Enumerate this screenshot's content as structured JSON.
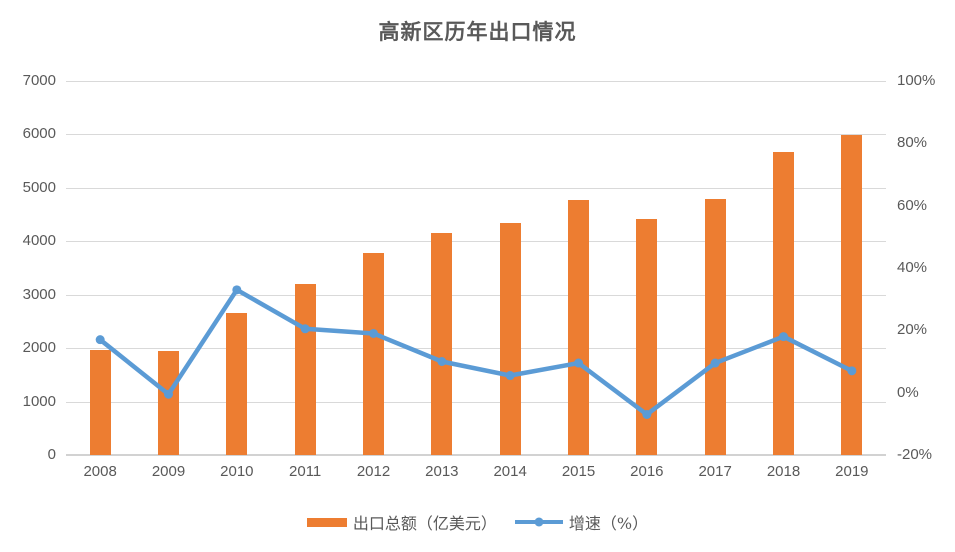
{
  "title": "高新区历年出口情况",
  "colors": {
    "bar": "#ED7D31",
    "line": "#5B9BD5",
    "marker": "#5B9BD5",
    "grid": "#D9D9D9",
    "axis_text": "#595959",
    "title_text": "#595959",
    "background": "#FFFFFF"
  },
  "chart_data": {
    "type": "bar",
    "title": "高新区历年出口情况",
    "categories": [
      "2008",
      "2009",
      "2010",
      "2011",
      "2012",
      "2013",
      "2014",
      "2015",
      "2016",
      "2017",
      "2018",
      "2019"
    ],
    "series": [
      {
        "name": "出口总额（亿美元）",
        "type": "bar",
        "axis": "left",
        "color": "#ED7D31",
        "values": [
          1970,
          1955,
          2650,
          3200,
          3785,
          4150,
          4350,
          4770,
          4420,
          4800,
          5665,
          5990
        ]
      },
      {
        "name": "增速（%）",
        "type": "line",
        "axis": "right",
        "color": "#5B9BD5",
        "values": [
          17,
          -0.5,
          33,
          20.5,
          19,
          10,
          5.5,
          9.5,
          -7,
          9.5,
          18,
          7
        ]
      }
    ],
    "left_axis": {
      "min": 0,
      "max": 7000,
      "step": 1000,
      "tick_labels_top_to_bottom": [
        "7000",
        "6000",
        "5000",
        "4000",
        "3000",
        "2000",
        "1000",
        "0"
      ]
    },
    "right_axis": {
      "min": -20,
      "max": 100,
      "step": 20,
      "tick_labels_top_to_bottom": [
        "100%",
        "80%",
        "60%",
        "40%",
        "20%",
        "0%",
        "-20%"
      ]
    },
    "grid": "horizontal",
    "legend_position": "bottom"
  },
  "legend": {
    "bar_label": "出口总额（亿美元）",
    "line_label": "增速（%）"
  }
}
